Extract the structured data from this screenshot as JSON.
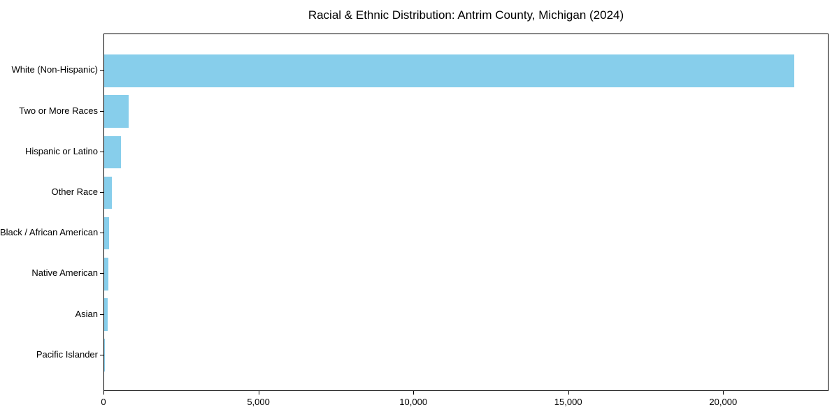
{
  "title": "Racial & Ethnic Distribution: Antrim County, Michigan (2024)",
  "colors": {
    "bar": "#87CEEB",
    "axis": "#000000",
    "text": "#000000",
    "background": "#FFFFFF"
  },
  "chart_data": {
    "type": "bar",
    "orientation": "horizontal",
    "title": "Racial & Ethnic Distribution: Antrim County, Michigan (2024)",
    "categories": [
      "White (Non-Hispanic)",
      "Two or More Races",
      "Hispanic or Latino",
      "Other Race",
      "Black / African American",
      "Native American",
      "Asian",
      "Pacific Islander"
    ],
    "values": [
      22280,
      800,
      550,
      250,
      160,
      140,
      105,
      10
    ],
    "xlabel": "",
    "ylabel": "",
    "xlim": [
      0,
      23400
    ],
    "xticks": [
      0,
      5000,
      10000,
      15000,
      20000
    ],
    "xtick_labels": [
      "0",
      "5,000",
      "10,000",
      "15,000",
      "20,000"
    ],
    "grid": false,
    "legend": null,
    "bar_color": "#87CEEB",
    "sorted": "descending"
  }
}
